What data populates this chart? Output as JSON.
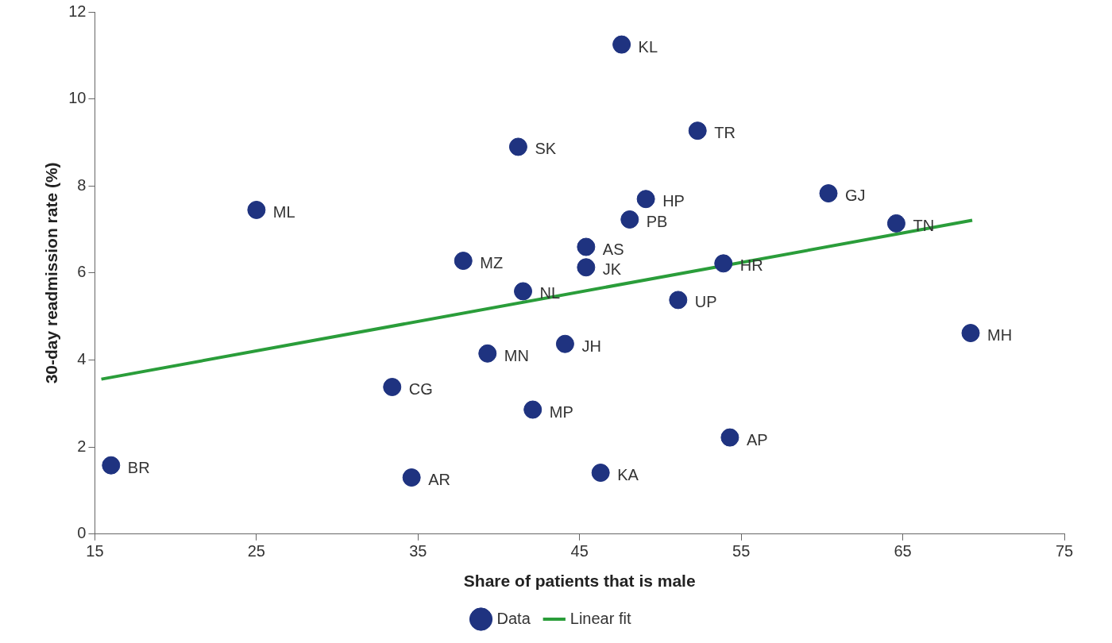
{
  "chart_data": {
    "type": "scatter",
    "xlabel": "Share of patients that is male",
    "ylabel": "30-day readmission rate (%)",
    "xlim": [
      15,
      75
    ],
    "xticks": [
      15,
      25,
      35,
      45,
      55,
      65,
      75
    ],
    "ylim": [
      0,
      12
    ],
    "yticks": [
      0,
      2,
      4,
      6,
      8,
      10,
      12
    ],
    "grid": false,
    "legend": "bottom",
    "series": [
      {
        "name": "Data",
        "marker": "circle",
        "color": "#1f3380",
        "x": [
          47.6,
          41.2,
          52.3,
          25.0,
          49.1,
          48.1,
          60.4,
          64.6,
          45.4,
          45.4,
          37.8,
          53.9,
          41.5,
          51.1,
          69.2,
          44.1,
          39.3,
          33.4,
          42.1,
          54.3,
          16.0,
          34.6,
          46.3
        ],
        "values": [
          11.25,
          8.9,
          9.27,
          7.45,
          7.7,
          7.23,
          7.83,
          7.14,
          6.6,
          6.13,
          6.28,
          6.22,
          5.58,
          5.38,
          4.62,
          4.37,
          4.15,
          3.38,
          2.86,
          2.22,
          1.58,
          1.3,
          1.41
        ]
      },
      {
        "name": "Linear fit",
        "type": "line",
        "color": "#2a9d3a",
        "x": [
          15.4,
          69.3
        ],
        "values": [
          3.56,
          7.21
        ]
      }
    ],
    "annotations": [
      {
        "text": "KL",
        "x": 47.6,
        "y": 11.25
      },
      {
        "text": "SK",
        "x": 41.2,
        "y": 8.9
      },
      {
        "text": "TR",
        "x": 52.3,
        "y": 9.27
      },
      {
        "text": "ML",
        "x": 25.0,
        "y": 7.45
      },
      {
        "text": "HP",
        "x": 49.1,
        "y": 7.7
      },
      {
        "text": "PB",
        "x": 48.1,
        "y": 7.23
      },
      {
        "text": "GJ",
        "x": 60.4,
        "y": 7.83
      },
      {
        "text": "TN",
        "x": 64.6,
        "y": 7.14
      },
      {
        "text": "AS",
        "x": 45.4,
        "y": 6.6
      },
      {
        "text": "JK",
        "x": 45.4,
        "y": 6.13
      },
      {
        "text": "MZ",
        "x": 37.8,
        "y": 6.28
      },
      {
        "text": "HR",
        "x": 53.9,
        "y": 6.22
      },
      {
        "text": "NL",
        "x": 41.5,
        "y": 5.58
      },
      {
        "text": "UP",
        "x": 51.1,
        "y": 5.38
      },
      {
        "text": "MH",
        "x": 69.2,
        "y": 4.62
      },
      {
        "text": "JH",
        "x": 44.1,
        "y": 4.37
      },
      {
        "text": "MN",
        "x": 39.3,
        "y": 4.15
      },
      {
        "text": "CG",
        "x": 33.4,
        "y": 3.38
      },
      {
        "text": "MP",
        "x": 42.1,
        "y": 2.86
      },
      {
        "text": "AP",
        "x": 54.3,
        "y": 2.22
      },
      {
        "text": "BR",
        "x": 16.0,
        "y": 1.58
      },
      {
        "text": "AR",
        "x": 34.6,
        "y": 1.3
      },
      {
        "text": "KA",
        "x": 46.3,
        "y": 1.41
      }
    ]
  }
}
